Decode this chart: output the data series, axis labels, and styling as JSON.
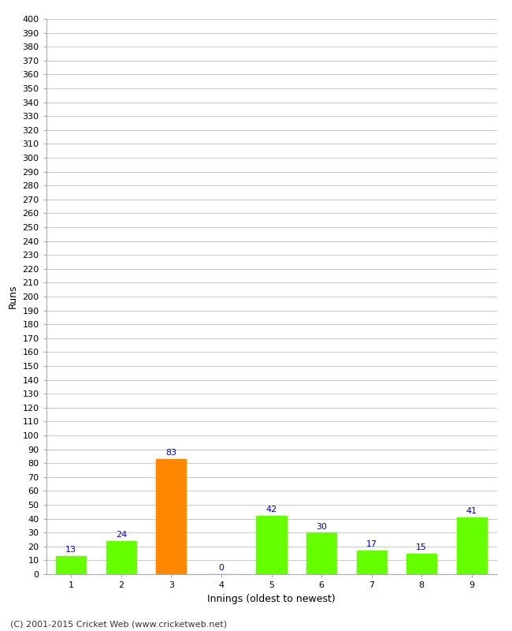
{
  "title": "",
  "xlabel": "Innings (oldest to newest)",
  "ylabel": "Runs",
  "categories": [
    "1",
    "2",
    "3",
    "4",
    "5",
    "6",
    "7",
    "8",
    "9"
  ],
  "values": [
    13,
    24,
    83,
    0,
    42,
    30,
    17,
    15,
    41
  ],
  "bar_colors": [
    "#66ff00",
    "#66ff00",
    "#ff8800",
    "#66ff00",
    "#66ff00",
    "#66ff00",
    "#66ff00",
    "#66ff00",
    "#66ff00"
  ],
  "ylim": [
    0,
    400
  ],
  "ytick_step": 10,
  "label_color": "#0000cc",
  "grid_color": "#cccccc",
  "background_color": "#ffffff",
  "footer": "(C) 2001-2015 Cricket Web (www.cricketweb.net)",
  "axis_label_fontsize": 9,
  "tick_fontsize": 8,
  "value_label_fontsize": 8,
  "footer_fontsize": 8
}
